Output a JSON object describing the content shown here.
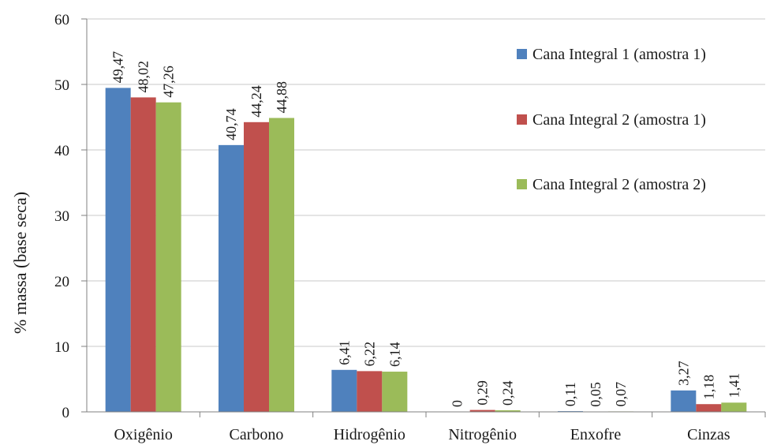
{
  "chart_data": {
    "type": "bar",
    "title": "",
    "xlabel": "",
    "ylabel": "% massa (base seca)",
    "ylim": [
      0,
      60
    ],
    "yticks": [
      "0",
      "10",
      "20",
      "30",
      "40",
      "50",
      "60"
    ],
    "grid": true,
    "legend_position": "right",
    "categories": [
      "Oxigênio",
      "Carbono",
      "Hidrogênio",
      "Nitrogênio",
      "Enxofre",
      "Cinzas"
    ],
    "series": [
      {
        "name": "Cana Integral 1 (amostra 1)",
        "color": "#4f81bd",
        "values": [
          49.47,
          40.74,
          6.41,
          0,
          0.11,
          3.27
        ],
        "labels": [
          "49,47",
          "40,74",
          "6,41",
          "0",
          "0,11",
          "3,27"
        ]
      },
      {
        "name": "Cana Integral 2 (amostra 1)",
        "color": "#c0504d",
        "values": [
          48.02,
          44.24,
          6.22,
          0.29,
          0.05,
          1.18
        ],
        "labels": [
          "48,02",
          "44,24",
          "6,22",
          "0,29",
          "0,05",
          "1,18"
        ]
      },
      {
        "name": "Cana Integral 2 (amostra 2)",
        "color": "#9bbb59",
        "values": [
          47.26,
          44.88,
          6.14,
          0.24,
          0.07,
          1.41
        ],
        "labels": [
          "47,26",
          "44,88",
          "6,14",
          "0,24",
          "0,07",
          "1,41"
        ]
      }
    ]
  }
}
